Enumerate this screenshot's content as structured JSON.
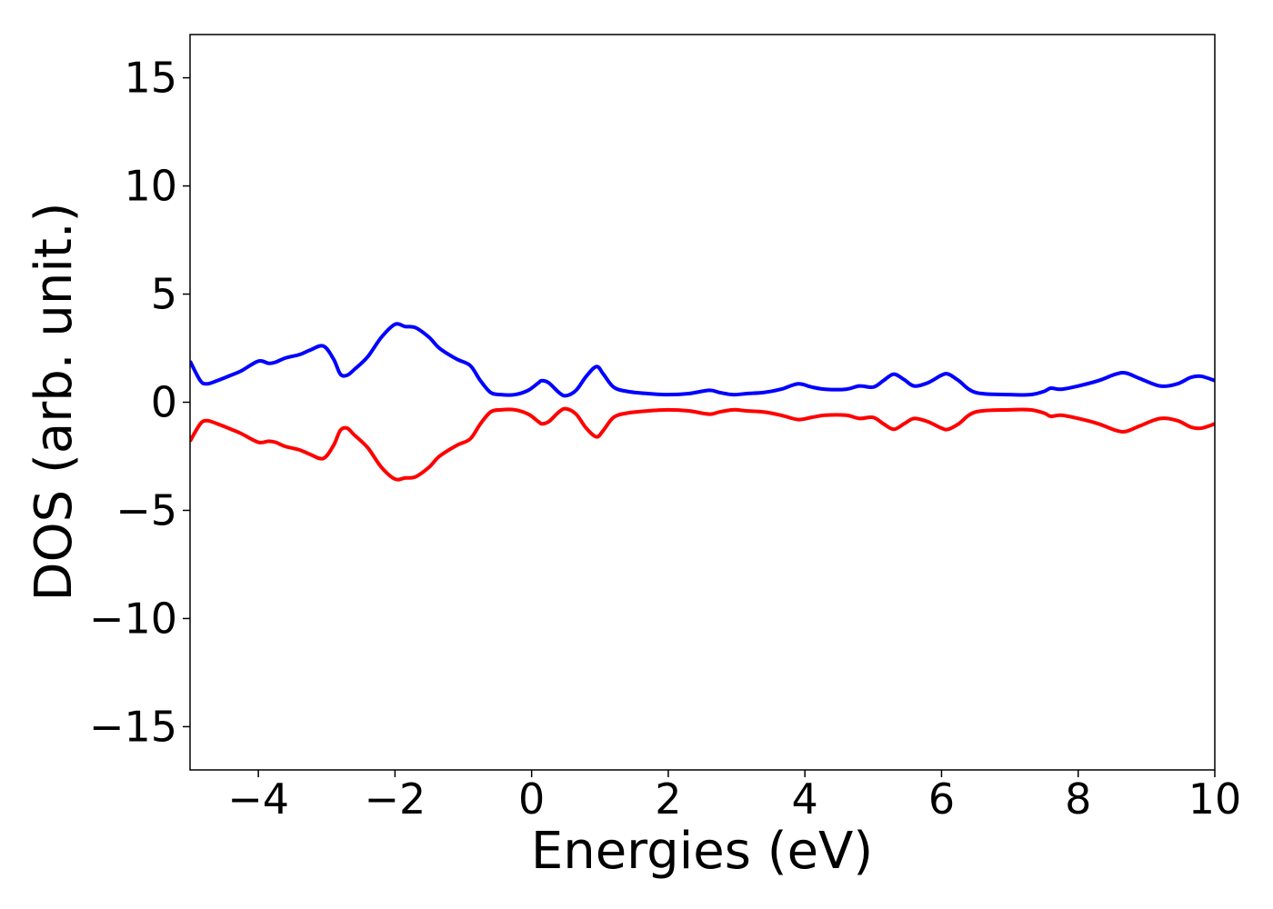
{
  "chart_data": {
    "type": "line",
    "title": "",
    "xlabel": "Energies (eV)",
    "ylabel": "DOS (arb. unit.)",
    "xlim": [
      -5,
      10
    ],
    "ylim": [
      -17,
      17
    ],
    "x_ticks": [
      -4,
      -2,
      0,
      2,
      4,
      6,
      8,
      10
    ],
    "x_tick_labels": [
      "−4",
      "−2",
      "0",
      "2",
      "4",
      "6",
      "8",
      "10"
    ],
    "y_ticks": [
      -15,
      -10,
      -5,
      0,
      5,
      10,
      15
    ],
    "y_tick_labels": [
      "−15",
      "−10",
      "−5",
      "0",
      "5",
      "10",
      "15"
    ],
    "grid": false,
    "legend": "none",
    "series": [
      {
        "color": "#0000ff",
        "x": [
          -5.0,
          -4.85,
          -4.75,
          -4.6,
          -4.4,
          -4.25,
          -4.0,
          -3.85,
          -3.75,
          -3.6,
          -3.4,
          -3.25,
          -3.05,
          -2.9,
          -2.8,
          -2.7,
          -2.6,
          -2.4,
          -2.2,
          -2.0,
          -1.85,
          -1.7,
          -1.5,
          -1.35,
          -1.1,
          -0.9,
          -0.75,
          -0.6,
          -0.45,
          -0.25,
          -0.05,
          0.1,
          0.15,
          0.25,
          0.4,
          0.5,
          0.65,
          0.8,
          0.95,
          1.05,
          1.2,
          1.4,
          1.7,
          2.0,
          2.3,
          2.6,
          2.75,
          2.95,
          3.15,
          3.4,
          3.65,
          3.9,
          4.1,
          4.3,
          4.6,
          4.8,
          5.0,
          5.15,
          5.3,
          5.45,
          5.6,
          5.8,
          6.0,
          6.1,
          6.25,
          6.5,
          7.0,
          7.3,
          7.5,
          7.6,
          7.75,
          8.0,
          8.3,
          8.55,
          8.7,
          8.9,
          9.2,
          9.45,
          9.65,
          9.8,
          10.0
        ],
        "y": [
          1.9,
          1.0,
          0.85,
          1.0,
          1.25,
          1.45,
          1.9,
          1.8,
          1.85,
          2.05,
          2.2,
          2.4,
          2.6,
          2.0,
          1.3,
          1.25,
          1.5,
          2.1,
          3.0,
          3.6,
          3.5,
          3.45,
          3.0,
          2.5,
          2.0,
          1.7,
          1.0,
          0.45,
          0.35,
          0.35,
          0.55,
          0.9,
          1.0,
          0.9,
          0.45,
          0.3,
          0.55,
          1.2,
          1.65,
          1.3,
          0.7,
          0.5,
          0.4,
          0.35,
          0.4,
          0.55,
          0.45,
          0.35,
          0.4,
          0.45,
          0.6,
          0.85,
          0.7,
          0.6,
          0.6,
          0.75,
          0.7,
          1.0,
          1.3,
          1.05,
          0.75,
          0.9,
          1.25,
          1.3,
          1.0,
          0.45,
          0.35,
          0.35,
          0.5,
          0.65,
          0.6,
          0.75,
          1.0,
          1.3,
          1.35,
          1.1,
          0.75,
          0.85,
          1.15,
          1.2,
          1.0
        ]
      },
      {
        "color": "#ff0000",
        "x": [
          -5.0,
          -4.85,
          -4.75,
          -4.6,
          -4.4,
          -4.25,
          -4.0,
          -3.85,
          -3.75,
          -3.6,
          -3.4,
          -3.25,
          -3.05,
          -2.9,
          -2.8,
          -2.7,
          -2.6,
          -2.4,
          -2.2,
          -2.0,
          -1.85,
          -1.7,
          -1.5,
          -1.35,
          -1.1,
          -0.9,
          -0.75,
          -0.6,
          -0.45,
          -0.25,
          -0.05,
          0.1,
          0.15,
          0.25,
          0.4,
          0.5,
          0.65,
          0.8,
          0.95,
          1.05,
          1.2,
          1.4,
          1.7,
          2.0,
          2.3,
          2.6,
          2.75,
          2.95,
          3.15,
          3.4,
          3.65,
          3.9,
          4.1,
          4.3,
          4.6,
          4.8,
          5.0,
          5.15,
          5.3,
          5.45,
          5.6,
          5.8,
          6.0,
          6.1,
          6.25,
          6.5,
          7.0,
          7.3,
          7.5,
          7.6,
          7.75,
          8.0,
          8.3,
          8.55,
          8.7,
          8.9,
          9.2,
          9.45,
          9.65,
          9.8,
          10.0
        ],
        "y": [
          -1.8,
          -1.0,
          -0.85,
          -1.0,
          -1.25,
          -1.45,
          -1.85,
          -1.8,
          -1.85,
          -2.05,
          -2.2,
          -2.4,
          -2.6,
          -2.0,
          -1.3,
          -1.2,
          -1.5,
          -2.1,
          -3.0,
          -3.55,
          -3.5,
          -3.45,
          -3.0,
          -2.5,
          -2.0,
          -1.7,
          -1.0,
          -0.45,
          -0.35,
          -0.35,
          -0.55,
          -0.9,
          -1.0,
          -0.9,
          -0.45,
          -0.3,
          -0.55,
          -1.2,
          -1.6,
          -1.3,
          -0.7,
          -0.5,
          -0.4,
          -0.35,
          -0.4,
          -0.55,
          -0.45,
          -0.35,
          -0.4,
          -0.45,
          -0.6,
          -0.8,
          -0.7,
          -0.6,
          -0.6,
          -0.75,
          -0.7,
          -1.0,
          -1.25,
          -1.0,
          -0.75,
          -0.9,
          -1.2,
          -1.25,
          -1.0,
          -0.45,
          -0.35,
          -0.35,
          -0.5,
          -0.65,
          -0.6,
          -0.75,
          -1.0,
          -1.3,
          -1.35,
          -1.1,
          -0.75,
          -0.85,
          -1.15,
          -1.2,
          -1.0
        ]
      }
    ]
  }
}
